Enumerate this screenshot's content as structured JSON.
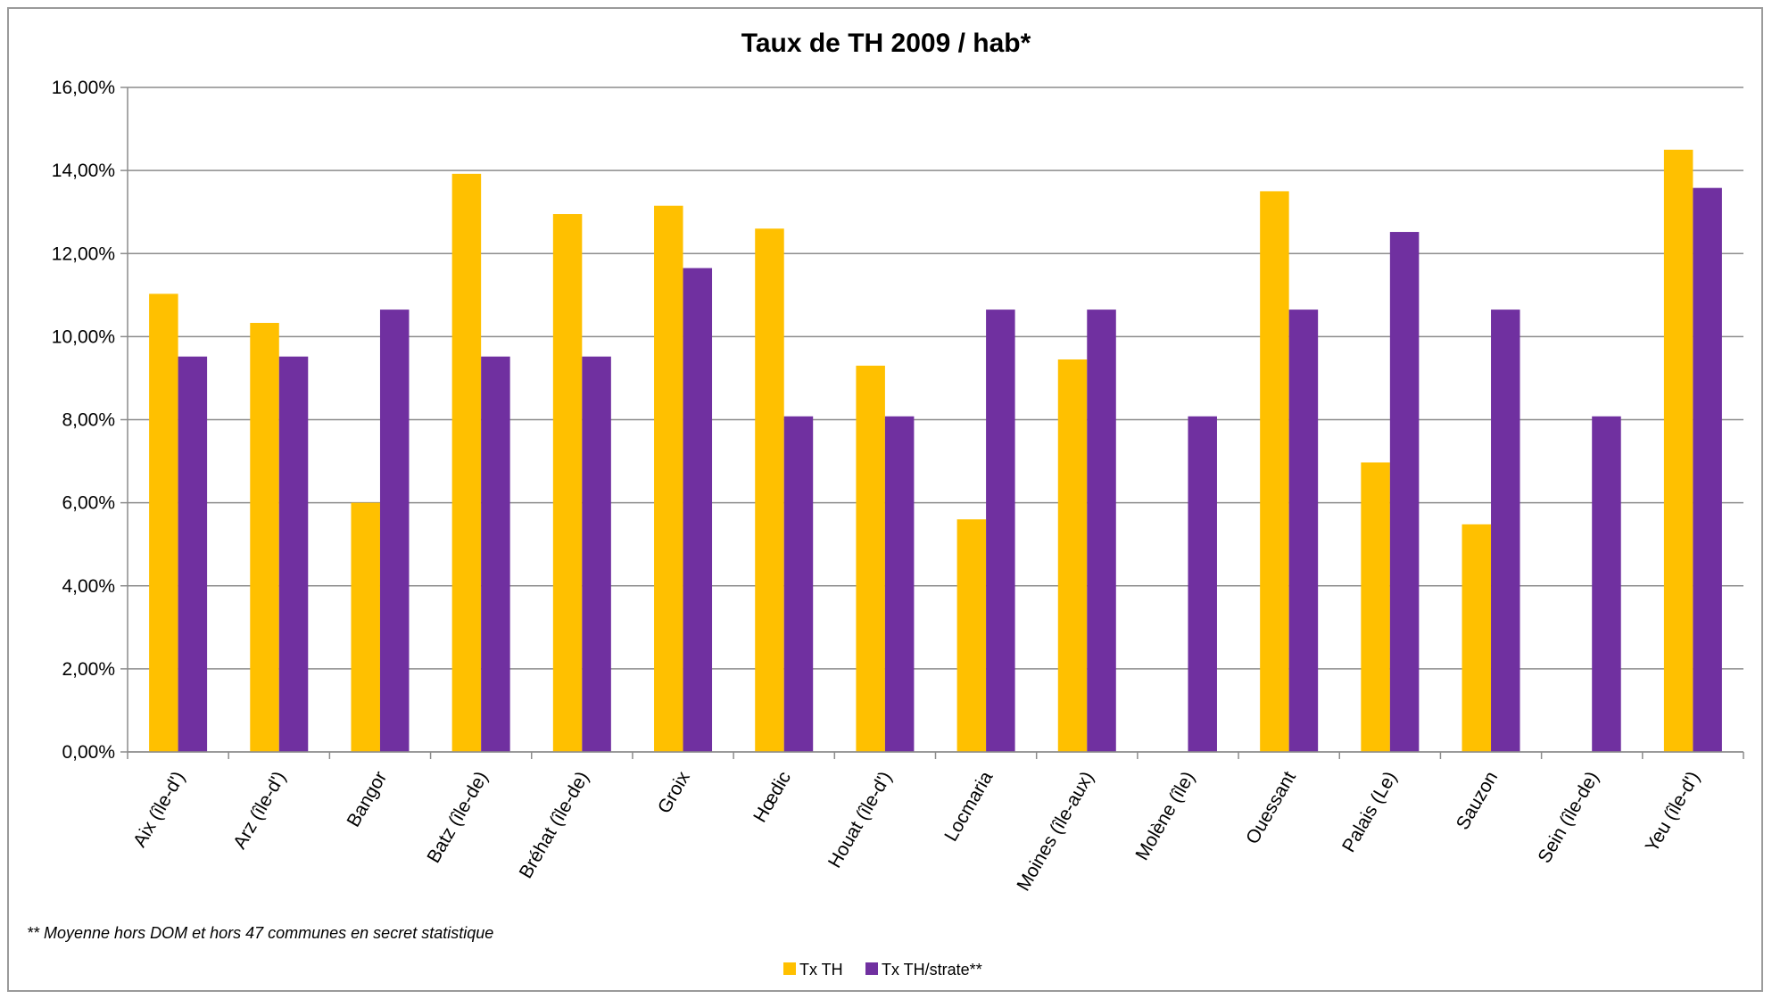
{
  "chart_data": {
    "type": "bar",
    "title": "Taux de TH 2009 / hab*",
    "xlabel": "",
    "ylabel": "",
    "ylim": [
      0,
      16
    ],
    "yticks": [
      "0,00%",
      "2,00%",
      "4,00%",
      "6,00%",
      "8,00%",
      "10,00%",
      "12,00%",
      "14,00%",
      "16,00%"
    ],
    "grid": true,
    "legend_position": "bottom",
    "categories": [
      "Aix (île-d')",
      "Arz (île-d')",
      "Bangor",
      "Batz (île-de)",
      "Bréhat (île-de)",
      "Groix",
      "Hœdic",
      "Houat (île-d')",
      "Locmaria",
      "Moines (île-aux)",
      "Molène (île)",
      "Ouessant",
      "Palais (Le)",
      "Sauzon",
      "Sein (île-de)",
      "Yeu (île-d')"
    ],
    "series": [
      {
        "name": "Tx TH",
        "color": "#FFC000",
        "values": [
          11.03,
          10.33,
          6.0,
          13.92,
          12.95,
          13.15,
          12.6,
          9.3,
          5.6,
          9.45,
          0,
          13.5,
          6.97,
          5.48,
          0,
          14.5
        ]
      },
      {
        "name": "Tx TH/strate**",
        "color": "#7030A0",
        "values": [
          9.52,
          9.52,
          10.65,
          9.52,
          9.52,
          11.65,
          8.08,
          8.08,
          10.65,
          10.65,
          8.08,
          10.65,
          12.52,
          10.65,
          8.08,
          13.58
        ]
      }
    ],
    "footnote": "** Moyenne hors DOM et hors 47 communes en secret statistique"
  }
}
